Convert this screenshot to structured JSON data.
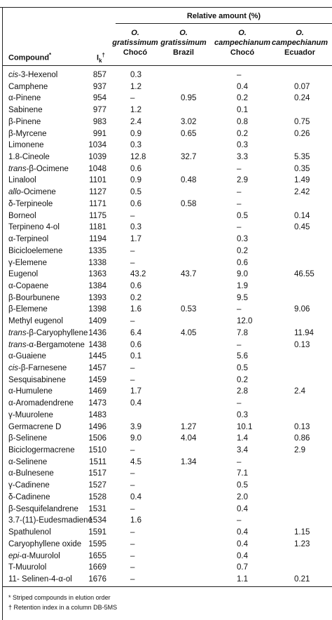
{
  "table": {
    "group_header": "Relative amount (%)",
    "columns": [
      {
        "text": "Compound",
        "mark": "*"
      },
      {
        "text": "I",
        "sub": "k",
        "mark": "†"
      },
      {
        "genus": "O.",
        "species": "gratissimum",
        "origin": "Chocó"
      },
      {
        "genus": "O.",
        "species": "gratissimum",
        "origin": "Brazil"
      },
      {
        "genus": "O.",
        "species": "campechianum",
        "origin": "Chocó"
      },
      {
        "genus": "O.",
        "species": "campechianum",
        "origin": "Ecuador"
      }
    ],
    "rows": [
      [
        {
          "italic": "cis",
          "rest": "-3-Hexenol"
        },
        857,
        "0.3",
        null,
        "–",
        null
      ],
      [
        "Camphene",
        937,
        "1.2",
        null,
        "0.4",
        "0.07"
      ],
      [
        "α-Pinene",
        954,
        "–",
        "0.95",
        "0.2",
        "0.24"
      ],
      [
        "Sabinene",
        977,
        "1.2",
        null,
        "0.1",
        null
      ],
      [
        "β-Pinene",
        983,
        "2.4",
        "3.02",
        "0.8",
        "0.75"
      ],
      [
        "β-Myrcene",
        991,
        "0.9",
        "0.65",
        "0.2",
        "0.26"
      ],
      [
        "Limonene",
        1034,
        "0.3",
        null,
        "0.3",
        null
      ],
      [
        "1.8-Cineole",
        1039,
        "12.8",
        "32.7",
        "3.3",
        "5.35"
      ],
      [
        {
          "italic": "trans",
          "rest": "-β-Ocimene"
        },
        1048,
        "0.6",
        null,
        "–",
        "0.35"
      ],
      [
        "Linalool",
        1101,
        "0.9",
        "0.48",
        "2.9",
        "1.49"
      ],
      [
        {
          "italic": "allo",
          "rest": "-Ocimene"
        },
        1127,
        "0.5",
        null,
        "–",
        "2.42"
      ],
      [
        "δ-Terpineole",
        1171,
        "0.6",
        "0.58",
        "–",
        null
      ],
      [
        "Borneol",
        1175,
        "–",
        null,
        "0.5",
        "0.14"
      ],
      [
        "Terpineno 4-ol",
        1181,
        "0.3",
        null,
        "–",
        "0.45"
      ],
      [
        "α-Terpineol",
        1194,
        "1.7",
        null,
        "0.3",
        null
      ],
      [
        "Bicicloelemene",
        1335,
        "–",
        null,
        "0.2",
        null
      ],
      [
        "γ-Elemene",
        1338,
        "–",
        null,
        "0.6",
        null
      ],
      [
        "Eugenol",
        1363,
        "43.2",
        "43.7",
        "9.0",
        "46.55"
      ],
      [
        "α-Copaene",
        1384,
        "0.6",
        null,
        "1.9",
        null
      ],
      [
        "β-Bourbunene",
        1393,
        "0.2",
        null,
        "9.5",
        null
      ],
      [
        "β-Elemene",
        1398,
        "1.6",
        "0.53",
        "–",
        "9.06"
      ],
      [
        "Methyl eugenol",
        1409,
        "–",
        null,
        "12.0",
        null
      ],
      [
        {
          "italic": "trans",
          "rest": "-β-Caryophyllene"
        },
        1436,
        "6.4",
        "4.05",
        "7.8",
        "11.94"
      ],
      [
        {
          "italic": "trans",
          "rest": "-α-Bergamotene"
        },
        1438,
        "0.6",
        null,
        "–",
        "0.13"
      ],
      [
        "α-Guaiene",
        1445,
        "0.1",
        null,
        "5.6",
        null
      ],
      [
        {
          "italic": "cis",
          "rest": "-β-Farnesene"
        },
        1457,
        "–",
        null,
        "0.5",
        null
      ],
      [
        "Sesquisabinene",
        1459,
        "–",
        null,
        "0.2",
        null
      ],
      [
        "α-Humulene",
        1469,
        "1.7",
        null,
        "2.8",
        "2.4"
      ],
      [
        "α-Aromadendrene",
        1473,
        "0.4",
        null,
        "–",
        null
      ],
      [
        "γ-Muurolene",
        1483,
        null,
        null,
        "0.3",
        null
      ],
      [
        "Germacrene D",
        1496,
        "3.9",
        "1.27",
        "10.1",
        "0.13"
      ],
      [
        "β-Selinene",
        1506,
        "9.0",
        "4.04",
        "1.4",
        "0.86"
      ],
      [
        "Biciclogermacrene",
        1510,
        "–",
        null,
        "3.4",
        "2.9"
      ],
      [
        "α-Selinene",
        1511,
        "4.5",
        "1.34",
        "–",
        null
      ],
      [
        "α-Bulnesene",
        1517,
        "–",
        null,
        "7.1",
        null
      ],
      [
        "γ-Cadinene",
        1527,
        "–",
        null,
        "0.5",
        null
      ],
      [
        "δ-Cadinene",
        1528,
        "0.4",
        null,
        "2.0",
        null
      ],
      [
        "β-Sesquifelandrene",
        1531,
        "–",
        null,
        "0.4",
        null
      ],
      [
        "3.7-(11)-Eudesmadiene",
        1534,
        "1.6",
        null,
        "–",
        null
      ],
      [
        "Spathulenol",
        1591,
        "–",
        null,
        "0.4",
        "1.15"
      ],
      [
        "Caryophyllene oxide",
        1595,
        "–",
        null,
        "0.4",
        "1.23"
      ],
      [
        {
          "italic": "epi",
          "rest": "-α-Muurolol"
        },
        1655,
        "–",
        null,
        "0.4",
        null
      ],
      [
        "T-Muurolol",
        1669,
        "–",
        null,
        "0.7",
        null
      ],
      [
        "11- Selinen-4-α-ol",
        1676,
        "–",
        null,
        "1.1",
        "0.21"
      ]
    ]
  },
  "footnotes": [
    "* Striped compounds in elution order",
    "† Retention index in a column DB-5MS"
  ]
}
